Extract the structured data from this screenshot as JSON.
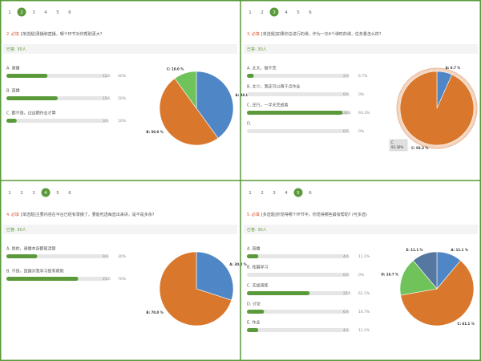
{
  "panels": [
    {
      "pages": [
        "1",
        "2",
        "3",
        "4",
        "5",
        "6"
      ],
      "active": 1,
      "number": "2.",
      "required": "必填",
      "question": "[单选题]录播和直播，哪个环节对你帮助更大?",
      "answered": "已答: 30人",
      "options": [
        {
          "label": "A. 录播",
          "count": "12人",
          "percent": 40,
          "percent_label": "40%",
          "pie_label": "A: 40.0 %",
          "color": "#4f86c6"
        },
        {
          "label": "B. 直播",
          "count": "15人",
          "percent": 50,
          "percent_label": "50%",
          "pie_label": "B: 50.0 %",
          "color": "#d9782d"
        },
        {
          "label": "C. 都不是，过这期作业才算",
          "count": "3人",
          "percent": 10,
          "percent_label": "10%",
          "pie_label": "C: 10.0 %",
          "color": "#6fc35a"
        }
      ]
    },
    {
      "pages": [
        "1",
        "2",
        "3",
        "4",
        "5",
        "6"
      ],
      "active": 2,
      "number": "3.",
      "required": "必填",
      "question": "[单选题]如果你总进行的课，作为一次4个课时的课，任务量怎么样?",
      "answered": "已答: 30人",
      "options": [
        {
          "label": "A. 太大，做不完",
          "count": "2人",
          "percent": 6.7,
          "percent_label": "6.7%",
          "pie_label": "A: 6.7 %",
          "color": "#4f86c6"
        },
        {
          "label": "B. 太少，我还可以再干点作业",
          "count": "0人",
          "percent": 0,
          "percent_label": "0%",
          "color": "#6fc35a"
        },
        {
          "label": "C. 还行，一半天完成看",
          "count": "28人",
          "percent": 93.3,
          "percent_label": "93.3%",
          "pie_label": "C: 93.3 %",
          "color": "#d9782d"
        },
        {
          "label": "D.",
          "count": "0人",
          "percent": 0,
          "percent_label": "0%",
          "color": "#5577a0"
        }
      ],
      "tooltip": {
        "name": "C",
        "value": "93.30%"
      }
    },
    {
      "pages": [
        "1",
        "2",
        "3",
        "4",
        "5",
        "6"
      ],
      "active": 3,
      "number": "4.",
      "required": "必填",
      "question": "[单选题]主要内容在平台已经有录播了，要能吃透每直出来讲，是不是多余?",
      "answered": "已答: 30人",
      "options": [
        {
          "label": "A. 是的，录播本身都很清楚",
          "count": "9人",
          "percent": 30,
          "percent_label": "30%",
          "pie_label": "A: 30.0 %",
          "color": "#4f86c6"
        },
        {
          "label": "B. 不是，直播对我学习很有帮助",
          "count": "21人",
          "percent": 70,
          "percent_label": "70%",
          "pie_label": "B: 70.0 %",
          "color": "#d9782d"
        }
      ]
    },
    {
      "pages": [
        "1",
        "2",
        "3",
        "4",
        "5",
        "6"
      ],
      "active": 4,
      "number": "5.",
      "required": "必填",
      "question": "[多选题]你觉得哪个环节中，你觉得哪些最有帮助? (可多选)",
      "answered": "已答: 30人",
      "options": [
        {
          "label": "A. 直播",
          "count": "4人",
          "percent": 11.1,
          "percent_label": "11.1%",
          "pie_label": "A: 11.1 %",
          "color": "#4f86c6"
        },
        {
          "label": "B. 拓展学习",
          "count": "0人",
          "percent": 0,
          "percent_label": "0%",
          "color": "#999999"
        },
        {
          "label": "C. 实操演练",
          "count": "22人",
          "percent": 61.1,
          "percent_label": "61.1%",
          "pie_label": "C: 61.1 %",
          "color": "#d9782d"
        },
        {
          "label": "D. 讨论",
          "count": "6人",
          "percent": 16.7,
          "percent_label": "16.7%",
          "pie_label": "D: 16.7 %",
          "color": "#6fc35a"
        },
        {
          "label": "E. 作业",
          "count": "4人",
          "percent": 11.1,
          "percent_label": "11.1%",
          "pie_label": "E: 11.1 %",
          "color": "#5577a0"
        }
      ]
    }
  ]
}
